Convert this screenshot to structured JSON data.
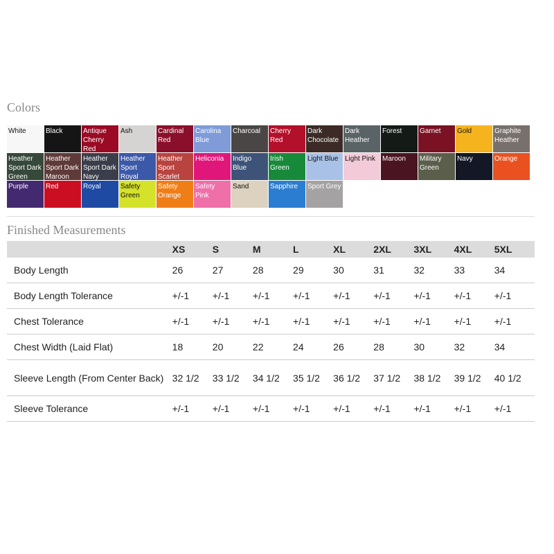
{
  "colors_title": "Colors",
  "colors": [
    {
      "name": "White",
      "hex": "#f7f7f7",
      "dark": true
    },
    {
      "name": "Black",
      "hex": "#151515"
    },
    {
      "name": "Antique Cherry Red",
      "hex": "#9a0a25"
    },
    {
      "name": "Ash",
      "hex": "#d6d4d2",
      "dark": true
    },
    {
      "name": "Cardinal Red",
      "hex": "#8a0f2b"
    },
    {
      "name": "Carolina Blue",
      "hex": "#7f9bd8"
    },
    {
      "name": "Charcoal",
      "hex": "#4a4646"
    },
    {
      "name": "Cherry Red",
      "hex": "#b3102b"
    },
    {
      "name": "Dark Chocolate",
      "hex": "#3b2a25"
    },
    {
      "name": "Dark Heather",
      "hex": "#5a6366"
    },
    {
      "name": "Forest",
      "hex": "#141a16"
    },
    {
      "name": "Garnet",
      "hex": "#7a1224"
    },
    {
      "name": "Gold",
      "hex": "#f5b41e",
      "dark": true
    },
    {
      "name": "Graphite Heather",
      "hex": "#78706c"
    },
    {
      "name": "Heather Sport Dark Green",
      "hex": "#35483a"
    },
    {
      "name": "Heather Sport Dark Maroon",
      "hex": "#5e3a38"
    },
    {
      "name": "Heather Sport Dark Navy",
      "hex": "#3a3d4a"
    },
    {
      "name": "Heather Sport Royal",
      "hex": "#3c58a8"
    },
    {
      "name": "Heather Sport Scarlet",
      "hex": "#b8433f"
    },
    {
      "name": "Heliconia",
      "hex": "#e0167a"
    },
    {
      "name": "Indigo Blue",
      "hex": "#3d5478"
    },
    {
      "name": "Irish Green",
      "hex": "#178a3a"
    },
    {
      "name": "Light Blue",
      "hex": "#a9c1e6",
      "dark": true
    },
    {
      "name": "Light Pink",
      "hex": "#f3cbd8",
      "dark": true
    },
    {
      "name": "Maroon",
      "hex": "#4a1421"
    },
    {
      "name": "Military Green",
      "hex": "#5a5e4b"
    },
    {
      "name": "Navy",
      "hex": "#141826"
    },
    {
      "name": "Orange",
      "hex": "#ea5120"
    },
    {
      "name": "Purple",
      "hex": "#43296f"
    },
    {
      "name": "Red",
      "hex": "#cc0e22"
    },
    {
      "name": "Royal",
      "hex": "#1f4aa3"
    },
    {
      "name": "Safety Green",
      "hex": "#d5e22a",
      "dark": true
    },
    {
      "name": "Safety Orange",
      "hex": "#f07e17"
    },
    {
      "name": "Safety Pink",
      "hex": "#ef6fa9"
    },
    {
      "name": "Sand",
      "hex": "#ddd2bf",
      "dark": true
    },
    {
      "name": "Sapphire",
      "hex": "#2a7dd0"
    },
    {
      "name": "Sport Grey",
      "hex": "#a4a2a2"
    }
  ],
  "measurements_title": "Finished Measurements",
  "sizes": [
    "XS",
    "S",
    "M",
    "L",
    "XL",
    "2XL",
    "3XL",
    "4XL",
    "5XL"
  ],
  "rows": [
    {
      "label": "Body Length",
      "values": [
        "26",
        "27",
        "28",
        "29",
        "30",
        "31",
        "32",
        "33",
        "34"
      ]
    },
    {
      "label": "Body Length Tolerance",
      "values": [
        "+/-1",
        "+/-1",
        "+/-1",
        "+/-1",
        "+/-1",
        "+/-1",
        "+/-1",
        "+/-1",
        "+/-1"
      ]
    },
    {
      "label": "Chest Tolerance",
      "values": [
        "+/-1",
        "+/-1",
        "+/-1",
        "+/-1",
        "+/-1",
        "+/-1",
        "+/-1",
        "+/-1",
        "+/-1"
      ]
    },
    {
      "label": "Chest Width (Laid Flat)",
      "values": [
        "18",
        "20",
        "22",
        "24",
        "26",
        "28",
        "30",
        "32",
        "34"
      ]
    },
    {
      "label": "Sleeve Length (From Center Back)",
      "values": [
        "32 1/2",
        "33 1/2",
        "34 1/2",
        "35 1/2",
        "36 1/2",
        "37 1/2",
        "38 1/2",
        "39 1/2",
        "40 1/2"
      ]
    },
    {
      "label": "Sleeve Tolerance",
      "values": [
        "+/-1",
        "+/-1",
        "+/-1",
        "+/-1",
        "+/-1",
        "+/-1",
        "+/-1",
        "+/-1",
        "+/-1"
      ]
    }
  ]
}
